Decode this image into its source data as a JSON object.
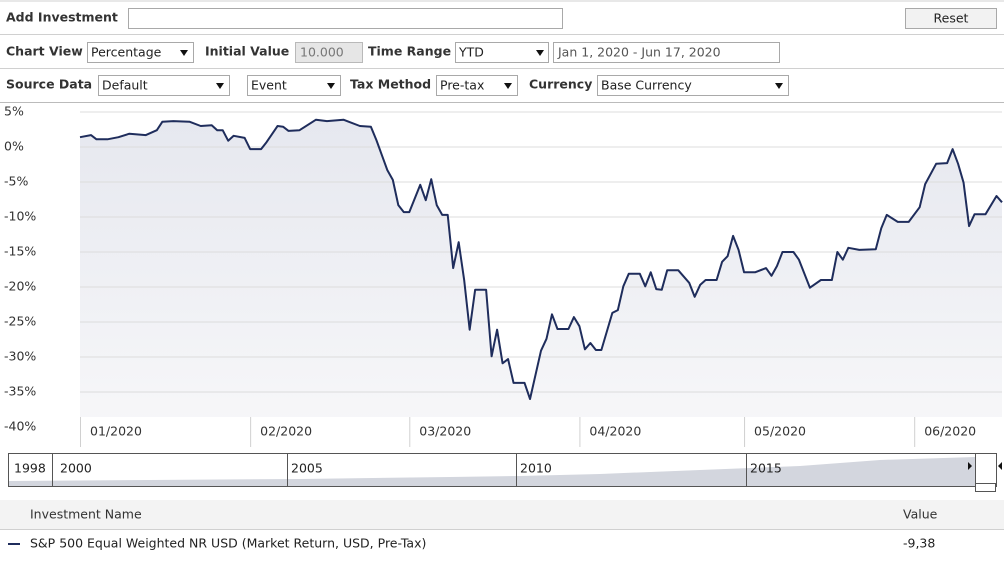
{
  "toolbar": {
    "add_investment_label": "Add Investment",
    "reset": "Reset",
    "chart_view_label": "Chart View",
    "chart_view": "Percentage",
    "initial_value_label": "Initial Value",
    "initial_value": "10.000",
    "time_range_label": "Time Range",
    "time_range": "YTD",
    "date_range": "Jan 1, 2020 - Jun 17, 2020",
    "source_data_label": "Source Data",
    "source_data": "Default",
    "event": "Event",
    "tax_method_label": "Tax Method",
    "tax_method": "Pre-tax",
    "currency_label": "Currency",
    "currency": "Base Currency"
  },
  "chart_data": {
    "type": "line",
    "x": [
      0,
      2,
      3,
      5,
      7,
      9,
      12,
      14,
      15,
      17,
      20,
      22,
      24,
      25,
      26,
      27,
      28,
      30,
      31,
      33,
      34,
      36,
      37,
      38,
      40,
      43,
      45,
      48,
      49,
      51,
      53,
      54,
      56,
      57,
      58,
      59,
      60,
      62,
      63,
      64,
      65,
      66,
      67,
      68,
      69,
      70,
      71,
      72,
      74,
      75,
      76,
      77,
      78,
      79,
      81,
      82,
      84,
      85,
      86,
      87,
      89,
      90,
      91,
      92,
      93,
      94,
      95,
      97,
      98,
      99,
      100,
      102,
      103,
      104,
      105,
      106,
      107,
      109,
      111,
      112,
      113,
      114,
      116,
      117,
      118,
      119,
      120,
      121,
      123,
      125,
      126,
      127,
      128,
      130,
      131,
      133,
      135,
      137,
      138,
      139,
      140,
      142,
      145,
      146,
      147,
      149,
      151,
      153,
      154,
      156,
      158,
      159,
      160,
      161,
      162,
      163,
      165,
      167,
      168
    ],
    "series": [
      {
        "name": "S&P 500 Equal Weighted NR USD (Market Return, USD, Pre-Tax)",
        "color": "#1f2d5c",
        "values": [
          1.4,
          1.7,
          1.1,
          1.1,
          1.4,
          1.9,
          1.7,
          2.4,
          3.6,
          3.7,
          3.6,
          3.0,
          3.1,
          2.4,
          2.4,
          0.9,
          1.6,
          1.3,
          -0.3,
          -0.3,
          0.7,
          3.0,
          2.9,
          2.3,
          2.4,
          3.9,
          3.7,
          3.9,
          3.6,
          3.0,
          2.9,
          1.0,
          -3.3,
          -4.7,
          -8.3,
          -9.3,
          -9.3,
          -5.4,
          -7.6,
          -4.6,
          -8.3,
          -9.7,
          -9.7,
          -17.3,
          -13.6,
          -19.0,
          -26.1,
          -20.4,
          -20.4,
          -29.9,
          -26.1,
          -30.9,
          -30.3,
          -33.7,
          -33.7,
          -36.0,
          -29.1,
          -27.4,
          -23.9,
          -26.0,
          -26.0,
          -24.3,
          -25.6,
          -28.9,
          -28.0,
          -29.0,
          -29.0,
          -23.7,
          -23.3,
          -19.9,
          -18.1,
          -18.1,
          -19.9,
          -17.9,
          -20.3,
          -20.4,
          -17.6,
          -17.6,
          -19.4,
          -21.4,
          -19.7,
          -19.0,
          -19.0,
          -16.4,
          -15.6,
          -12.7,
          -14.7,
          -17.9,
          -17.9,
          -17.3,
          -18.4,
          -17.0,
          -15.0,
          -15.0,
          -16.1,
          -20.1,
          -19.0,
          -19.0,
          -15.0,
          -16.1,
          -14.4,
          -14.7,
          -14.6,
          -11.6,
          -9.7,
          -10.7,
          -10.7,
          -8.6,
          -5.3,
          -2.4,
          -2.3,
          -0.3,
          -2.4,
          -5.1,
          -11.3,
          -9.6,
          -9.6,
          -7.0,
          -7.9
        ]
      }
    ],
    "xlim": [
      0,
      168
    ],
    "xticks": [
      {
        "value": 0,
        "label": "01/2020"
      },
      {
        "value": 31,
        "label": "02/2020"
      },
      {
        "value": 60,
        "label": "03/2020"
      },
      {
        "value": 91,
        "label": "04/2020"
      },
      {
        "value": 121,
        "label": "05/2020"
      },
      {
        "value": 152,
        "label": "06/2020"
      }
    ],
    "ylim": [
      -40,
      5
    ],
    "yticks": [
      {
        "value": 5,
        "label": "5%"
      },
      {
        "value": 0,
        "label": "0%"
      },
      {
        "value": -5,
        "label": "-5%"
      },
      {
        "value": -10,
        "label": "-10%"
      },
      {
        "value": -15,
        "label": "-15%"
      },
      {
        "value": -20,
        "label": "-20%"
      },
      {
        "value": -25,
        "label": "-25%"
      },
      {
        "value": -30,
        "label": "-30%"
      },
      {
        "value": -35,
        "label": "-35%"
      },
      {
        "value": -40,
        "label": "-40%"
      }
    ],
    "grid": true
  },
  "navigator": {
    "labels": [
      "1998",
      "2000",
      "2005",
      "2010",
      "2015"
    ]
  },
  "table": {
    "headers": [
      "Investment Name",
      "Value"
    ],
    "values": [
      "-9,38"
    ]
  }
}
